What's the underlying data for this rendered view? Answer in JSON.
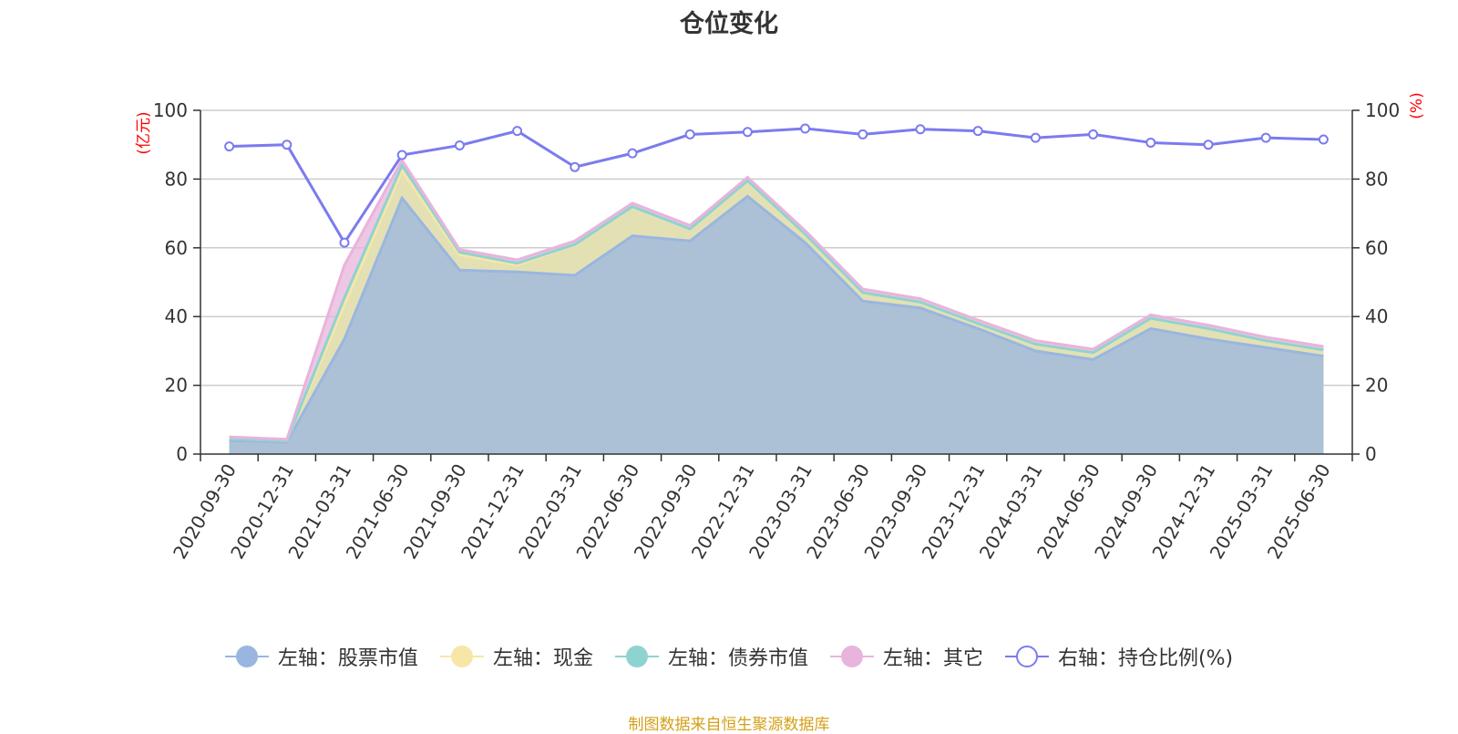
{
  "title": "仓位变化",
  "source_note": "制图数据来自恒生聚源数据库",
  "legend": [
    {
      "label": "左轴：股票市值",
      "color": "#9ab6e0",
      "filled": true
    },
    {
      "label": "左轴：现金",
      "color": "#f7e7a7",
      "filled": true
    },
    {
      "label": "左轴：债券市值",
      "color": "#8fd3d1",
      "filled": true
    },
    {
      "label": "左轴：其它",
      "color": "#e8b4dc",
      "filled": true
    },
    {
      "label": "右轴：持仓比例(%)",
      "color": "#7b7bef",
      "filled": false
    }
  ],
  "chart_data": {
    "type": "area",
    "title": "仓位变化",
    "y_left_label": "(亿元)",
    "y_right_label": "(%)",
    "y_left_range": [
      0,
      100
    ],
    "y_right_range": [
      0,
      100
    ],
    "y_ticks": [
      0,
      20,
      40,
      60,
      80,
      100
    ],
    "grid": true,
    "legend_position": "bottom",
    "stacked": true,
    "categories": [
      "2020-09-30",
      "2020-12-31",
      "2021-03-31",
      "2021-06-30",
      "2021-09-30",
      "2021-12-31",
      "2022-03-31",
      "2022-06-30",
      "2022-09-30",
      "2022-12-31",
      "2023-03-31",
      "2023-06-30",
      "2023-09-30",
      "2023-12-31",
      "2024-03-31",
      "2024-06-30",
      "2024-09-30",
      "2024-12-31",
      "2025-03-31",
      "2025-06-30"
    ],
    "series": [
      {
        "name": "左轴：股票市值",
        "axis": "left",
        "color": "#9ab6e0",
        "values": [
          4.0,
          3.5,
          33.5,
          74.5,
          53.5,
          53.0,
          52.0,
          63.5,
          62.0,
          75.0,
          61.5,
          44.5,
          42.5,
          36.5,
          30.0,
          27.5,
          36.5,
          33.5,
          31.0,
          28.5
        ]
      },
      {
        "name": "左轴：现金",
        "axis": "left",
        "color": "#f7e7a7",
        "values": [
          0.5,
          0.4,
          10.0,
          8.0,
          4.5,
          2.0,
          9.0,
          8.5,
          3.5,
          4.5,
          2.5,
          2.5,
          1.7,
          1.5,
          2.0,
          2.0,
          3.0,
          3.0,
          2.0,
          1.8
        ]
      },
      {
        "name": "左轴：债券市值",
        "axis": "left",
        "color": "#8fd3d1",
        "values": [
          0.0,
          0.0,
          2.0,
          1.5,
          0.7,
          0.5,
          0.0,
          0.0,
          0.0,
          0.0,
          0.0,
          0.0,
          0.0,
          0.0,
          0.0,
          0.0,
          0.0,
          0.0,
          0.0,
          0.0
        ]
      },
      {
        "name": "左轴：其它",
        "axis": "left",
        "color": "#e8b4dc",
        "values": [
          0.5,
          0.4,
          9.5,
          1.5,
          0.8,
          1.0,
          1.0,
          1.0,
          1.0,
          1.0,
          1.0,
          1.0,
          1.0,
          1.0,
          1.0,
          1.0,
          1.0,
          1.0,
          1.0,
          1.0
        ]
      },
      {
        "name": "右轴：持仓比例(%)",
        "axis": "right",
        "color": "#7b7bef",
        "values": [
          89.5,
          90.0,
          61.5,
          87.0,
          89.8,
          94.0,
          83.5,
          87.5,
          93.0,
          93.7,
          94.7,
          93.0,
          94.5,
          94.0,
          92.0,
          93.0,
          90.6,
          90.0,
          92.0,
          91.5
        ]
      }
    ]
  }
}
